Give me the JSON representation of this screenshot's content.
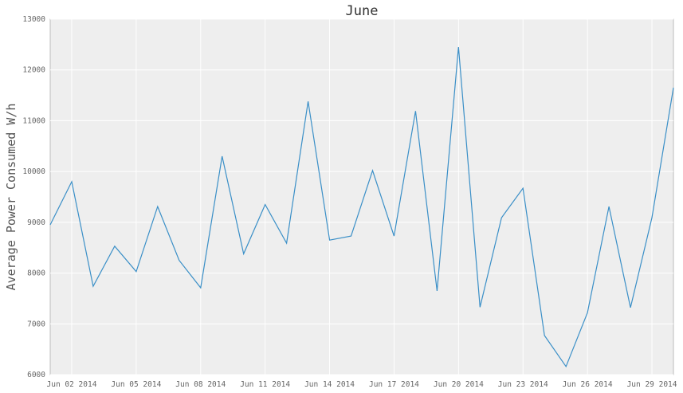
{
  "chart_data": {
    "type": "line",
    "title": "June",
    "xlabel": "",
    "ylabel": "Average Power Consumed W/h",
    "ylim": [
      6000,
      13000
    ],
    "xlim": [
      "2014-06-01",
      "2014-06-30"
    ],
    "grid": true,
    "yticks": [
      6000,
      7000,
      8000,
      9000,
      10000,
      11000,
      12000,
      13000
    ],
    "xticks": [
      {
        "date": "2014-06-02",
        "label": "Jun 02 2014"
      },
      {
        "date": "2014-06-05",
        "label": "Jun 05 2014"
      },
      {
        "date": "2014-06-08",
        "label": "Jun 08 2014"
      },
      {
        "date": "2014-06-11",
        "label": "Jun 11 2014"
      },
      {
        "date": "2014-06-14",
        "label": "Jun 14 2014"
      },
      {
        "date": "2014-06-17",
        "label": "Jun 17 2014"
      },
      {
        "date": "2014-06-20",
        "label": "Jun 20 2014"
      },
      {
        "date": "2014-06-23",
        "label": "Jun 23 2014"
      },
      {
        "date": "2014-06-26",
        "label": "Jun 26 2014"
      },
      {
        "date": "2014-06-29",
        "label": "Jun 29 2014"
      }
    ],
    "series": [
      {
        "color": "#3a8fc7",
        "x": [
          "2014-06-01",
          "2014-06-02",
          "2014-06-03",
          "2014-06-04",
          "2014-06-05",
          "2014-06-06",
          "2014-06-07",
          "2014-06-08",
          "2014-06-09",
          "2014-06-10",
          "2014-06-11",
          "2014-06-12",
          "2014-06-13",
          "2014-06-14",
          "2014-06-15",
          "2014-06-16",
          "2014-06-17",
          "2014-06-18",
          "2014-06-19",
          "2014-06-20",
          "2014-06-21",
          "2014-06-22",
          "2014-06-23",
          "2014-06-24",
          "2014-06-25",
          "2014-06-26",
          "2014-06-27",
          "2014-06-28",
          "2014-06-29",
          "2014-06-30"
        ],
        "values": [
          8950,
          9800,
          7740,
          8530,
          8030,
          9310,
          8250,
          7710,
          10300,
          8380,
          9350,
          8590,
          11380,
          8650,
          8730,
          10020,
          8730,
          11190,
          7650,
          12450,
          7330,
          9090,
          9670,
          6770,
          6160,
          7220,
          9310,
          7320,
          9090,
          11650
        ]
      }
    ]
  }
}
